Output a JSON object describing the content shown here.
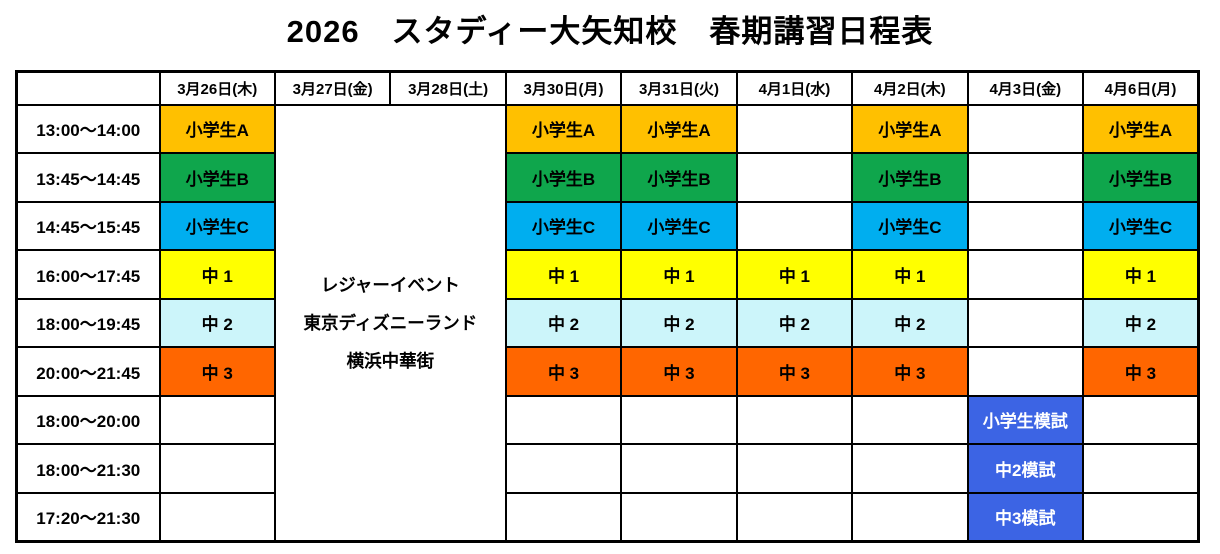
{
  "title": "2026　スタディー大矢知校　春期講習日程表",
  "colors": {
    "elemA": "#FFC000",
    "elemB": "#0FA64C",
    "elemC": "#00AEEF",
    "jhs1": "#FFFF00",
    "jhs2": "#CCF5FA",
    "jhs3": "#FF6600",
    "exam": "#3C64E4",
    "examText": "#FFFFFF"
  },
  "grid": {
    "corner": "",
    "columns": [
      "3月26日(木)",
      "3月27日(金)",
      "3月28日(土)",
      "3月30日(月)",
      "3月31日(火)",
      "4月1日(水)",
      "4月2日(木)",
      "4月3日(金)",
      "4月6日(月)"
    ],
    "event": {
      "lines": [
        "レジャーイベント",
        "東京ディズニーランド",
        "横浜中華街"
      ],
      "spans_columns": [
        "3月27日(金)",
        "3月28日(土)"
      ]
    },
    "rows": [
      {
        "time": "13:00～14:00",
        "cells": [
          {
            "label": "小学生A",
            "type": "elemA"
          },
          {
            "label": "小学生A",
            "type": "elemA"
          },
          {
            "label": "小学生A",
            "type": "elemA"
          },
          {
            "label": "",
            "type": "empty"
          },
          {
            "label": "小学生A",
            "type": "elemA"
          },
          {
            "label": "",
            "type": "empty"
          },
          {
            "label": "小学生A",
            "type": "elemA"
          }
        ]
      },
      {
        "time": "13:45～14:45",
        "cells": [
          {
            "label": "小学生B",
            "type": "elemB"
          },
          {
            "label": "小学生B",
            "type": "elemB"
          },
          {
            "label": "小学生B",
            "type": "elemB"
          },
          {
            "label": "",
            "type": "empty"
          },
          {
            "label": "小学生B",
            "type": "elemB"
          },
          {
            "label": "",
            "type": "empty"
          },
          {
            "label": "小学生B",
            "type": "elemB"
          }
        ]
      },
      {
        "time": "14:45～15:45",
        "cells": [
          {
            "label": "小学生C",
            "type": "elemC"
          },
          {
            "label": "小学生C",
            "type": "elemC"
          },
          {
            "label": "小学生C",
            "type": "elemC"
          },
          {
            "label": "",
            "type": "empty"
          },
          {
            "label": "小学生C",
            "type": "elemC"
          },
          {
            "label": "",
            "type": "empty"
          },
          {
            "label": "小学生C",
            "type": "elemC"
          }
        ]
      },
      {
        "time": "16:00～17:45",
        "cells": [
          {
            "label": "中 1",
            "type": "jhs1"
          },
          {
            "label": "中 1",
            "type": "jhs1"
          },
          {
            "label": "中 1",
            "type": "jhs1"
          },
          {
            "label": "中 1",
            "type": "jhs1"
          },
          {
            "label": "中 1",
            "type": "jhs1"
          },
          {
            "label": "",
            "type": "empty"
          },
          {
            "label": "中 1",
            "type": "jhs1"
          }
        ]
      },
      {
        "time": "18:00～19:45",
        "cells": [
          {
            "label": "中 2",
            "type": "jhs2"
          },
          {
            "label": "中 2",
            "type": "jhs2"
          },
          {
            "label": "中 2",
            "type": "jhs2"
          },
          {
            "label": "中 2",
            "type": "jhs2"
          },
          {
            "label": "中 2",
            "type": "jhs2"
          },
          {
            "label": "",
            "type": "empty"
          },
          {
            "label": "中 2",
            "type": "jhs2"
          }
        ]
      },
      {
        "time": "20:00～21:45",
        "cells": [
          {
            "label": "中 3",
            "type": "jhs3"
          },
          {
            "label": "中 3",
            "type": "jhs3"
          },
          {
            "label": "中 3",
            "type": "jhs3"
          },
          {
            "label": "中 3",
            "type": "jhs3"
          },
          {
            "label": "中 3",
            "type": "jhs3"
          },
          {
            "label": "",
            "type": "empty"
          },
          {
            "label": "中 3",
            "type": "jhs3"
          }
        ]
      },
      {
        "time": "18:00～20:00",
        "cells": [
          {
            "label": "",
            "type": "empty"
          },
          {
            "label": "",
            "type": "empty"
          },
          {
            "label": "",
            "type": "empty"
          },
          {
            "label": "",
            "type": "empty"
          },
          {
            "label": "",
            "type": "empty"
          },
          {
            "label": "小学生模試",
            "type": "exam"
          },
          {
            "label": "",
            "type": "empty"
          }
        ]
      },
      {
        "time": "18:00～21:30",
        "cells": [
          {
            "label": "",
            "type": "empty"
          },
          {
            "label": "",
            "type": "empty"
          },
          {
            "label": "",
            "type": "empty"
          },
          {
            "label": "",
            "type": "empty"
          },
          {
            "label": "",
            "type": "empty"
          },
          {
            "label": "中2模試",
            "type": "exam"
          },
          {
            "label": "",
            "type": "empty"
          }
        ]
      },
      {
        "time": "17:20～21:30",
        "cells": [
          {
            "label": "",
            "type": "empty"
          },
          {
            "label": "",
            "type": "empty"
          },
          {
            "label": "",
            "type": "empty"
          },
          {
            "label": "",
            "type": "empty"
          },
          {
            "label": "",
            "type": "empty"
          },
          {
            "label": "中3模試",
            "type": "exam"
          },
          {
            "label": "",
            "type": "empty"
          }
        ]
      }
    ]
  }
}
